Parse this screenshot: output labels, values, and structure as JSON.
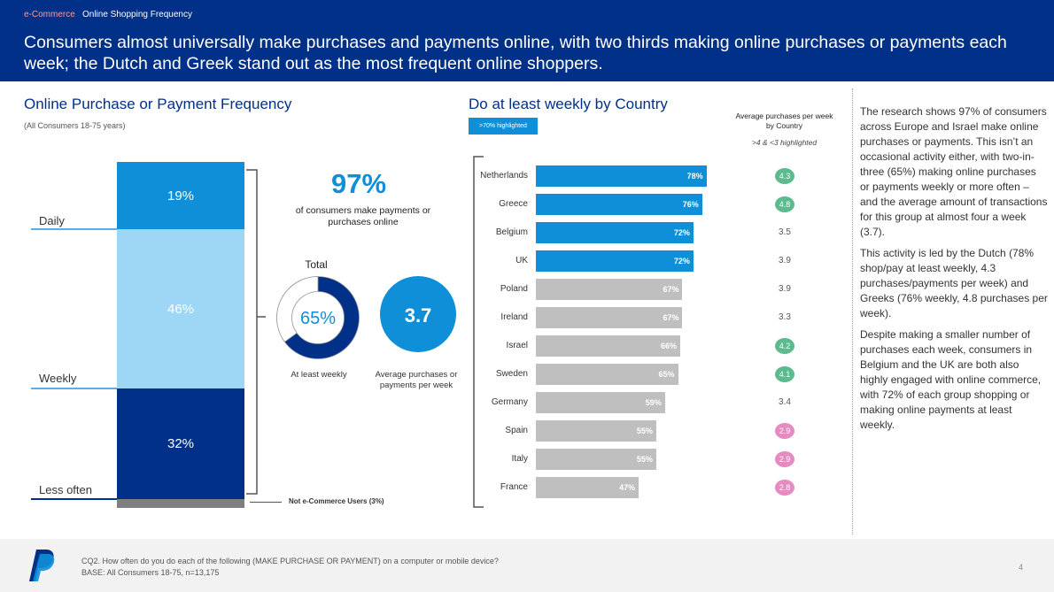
{
  "header": {
    "breadcrumb_section": "e-Commerce",
    "breadcrumb_page": "Online Shopping Frequency",
    "headline": "Consumers almost universally make purchases and payments online, with two thirds making online purchases or payments each week; the Dutch and Greek stand out as the most frequent online shoppers."
  },
  "left": {
    "title": "Online Purchase or Payment Frequency",
    "subtitle": "(All Consumers 18-75 years)",
    "segments": [
      {
        "label": "Daily",
        "value_label": "19%",
        "value": 19,
        "color": "#0f8fd8"
      },
      {
        "label": "Weekly",
        "value_label": "46%",
        "value": 46,
        "color": "#9dd7f5"
      },
      {
        "label": "Less often",
        "value_label": "32%",
        "value": 32,
        "color": "#003087"
      },
      {
        "label": "Not e-Commerce Users (3%)",
        "value": 3,
        "color": "#7f7f7f"
      }
    ],
    "not_users_label": "Not e-Commerce Users (3%)"
  },
  "stats": {
    "big_pct": "97%",
    "big_desc": "of consumers make payments or purchases online",
    "total_label": "Total",
    "donut_value": "65%",
    "donut_fraction": 0.65,
    "donut_caption": "At least weekly",
    "avg_value": "3.7",
    "avg_caption": "Average purchases or payments per week"
  },
  "countries": {
    "title": "Do at least weekly by Country",
    "badge": ">70% highlighted",
    "avg_header": "Average purchases per week by Country",
    "avg_note": ">4 & <3 highlighted",
    "highlight_color": "#0f8fd8",
    "base_color": "#bfbfbf"
  },
  "chart_data": {
    "type": "bar",
    "categories": [
      "Netherlands",
      "Greece",
      "Belgium",
      "UK",
      "Poland",
      "Ireland",
      "Israel",
      "Sweden",
      "Germany",
      "Spain",
      "Italy",
      "France"
    ],
    "values": [
      78,
      76,
      72,
      72,
      67,
      67,
      66,
      65,
      59,
      55,
      55,
      47
    ],
    "value_labels": [
      "78%",
      "76%",
      "72%",
      "72%",
      "67%",
      "67%",
      "66%",
      "65%",
      "59%",
      "55%",
      "55%",
      "47%"
    ],
    "highlighted": [
      true,
      true,
      true,
      true,
      false,
      false,
      false,
      false,
      false,
      false,
      false,
      false
    ],
    "avg_per_week": [
      "4.3",
      "4.8",
      "3.5",
      "3.9",
      "3.9",
      "3.3",
      "4.2",
      "4.1",
      "3.4",
      "2.9",
      "2.9",
      "2.8"
    ],
    "avg_status": [
      "high",
      "high",
      "normal",
      "normal",
      "normal",
      "normal",
      "high",
      "high",
      "normal",
      "low",
      "low",
      "low"
    ],
    "high_color": "#5cba8f",
    "low_color": "#e58bc1",
    "xlim": [
      0,
      100
    ]
  },
  "right_text": {
    "p1": "The research shows 97% of consumers across Europe and Israel make online purchases or payments. This isn’t an occasional activity either, with two-in-three (65%) making online purchases or payments weekly or more often – and the average amount of transactions for this group at almost four a week (3.7).",
    "p2": "This activity is led by the Dutch (78% shop/pay at least weekly, 4.3 purchases/payments per week) and Greeks (76% weekly, 4.8 purchases per week).",
    "p3": "Despite making a smaller number of purchases each week, consumers in Belgium and the UK are both also highly engaged with online commerce, with 72% of each group shopping or making online payments at least weekly."
  },
  "footer": {
    "question": "CQ2. How often do you do each of the following (MAKE PURCHASE OR PAYMENT) on a computer or mobile device?",
    "base": "BASE: All Consumers 18-75, n=13,175",
    "page_number": "4"
  }
}
